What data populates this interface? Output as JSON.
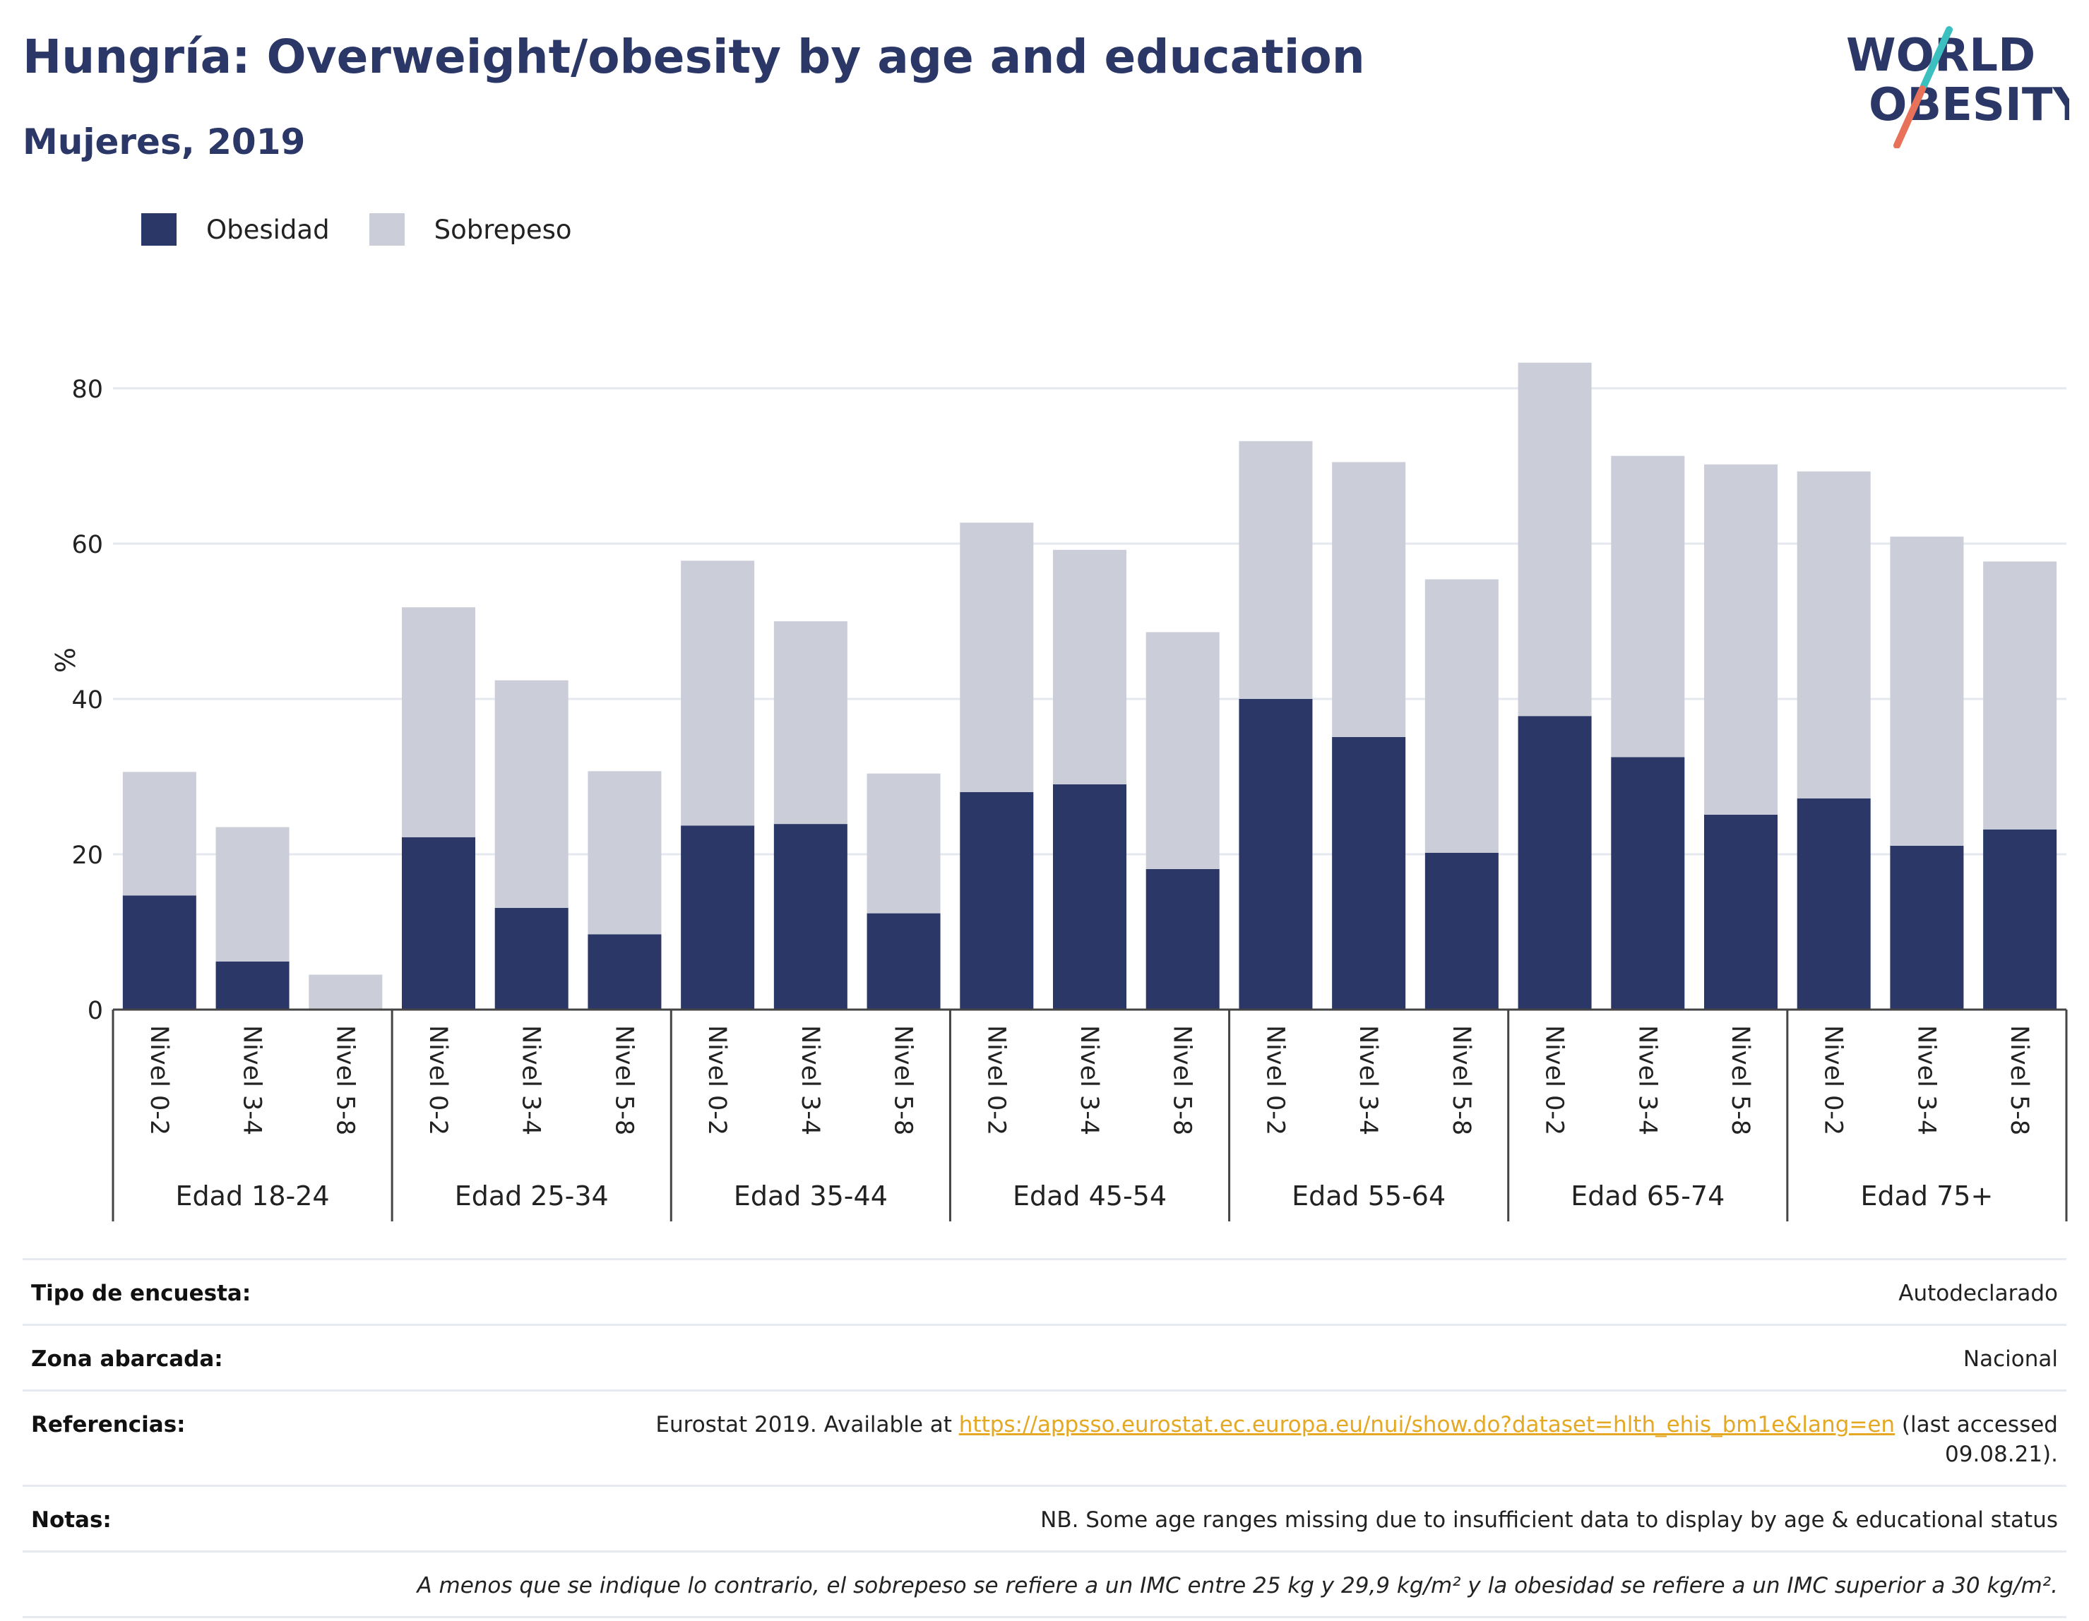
{
  "header": {
    "title": "Hungría: Overweight/obesity by age and education",
    "subtitle": "Mujeres, 2019"
  },
  "logo": {
    "line1": "WORLD",
    "line2": "OBESITY",
    "accent_teal": "#3bbfbf",
    "accent_coral": "#e8715a",
    "color": "#2b3766"
  },
  "legend": [
    {
      "label": "Obesidad",
      "color": "#2b3766"
    },
    {
      "label": "Sobrepeso",
      "color": "#cbcdd9"
    }
  ],
  "chart_data": {
    "type": "bar",
    "stacked": true,
    "ylabel": "%",
    "ylim": [
      0,
      90
    ],
    "yticks": [
      0,
      20,
      40,
      60,
      80
    ],
    "grid": true,
    "legend_position": "top-left",
    "groups": [
      "Edad 18-24",
      "Edad 25-34",
      "Edad 35-44",
      "Edad 45-54",
      "Edad 55-64",
      "Edad 65-74",
      "Edad 75+"
    ],
    "subcategories": [
      "Nivel 0-2",
      "Nivel 3-4",
      "Nivel 5-8"
    ],
    "series": [
      {
        "name": "Obesidad",
        "color": "#2b3766",
        "values": [
          14.7,
          6.2,
          0,
          22.2,
          13.1,
          9.7,
          23.7,
          23.9,
          12.4,
          28.0,
          29.0,
          18.1,
          40.0,
          35.1,
          20.2,
          37.8,
          32.5,
          25.1,
          27.2,
          21.1,
          23.2
        ]
      },
      {
        "name": "Sobrepeso",
        "color": "#cbcdd9",
        "values": [
          15.9,
          17.3,
          4.5,
          29.6,
          29.3,
          21.0,
          34.1,
          26.1,
          18.0,
          34.7,
          30.2,
          30.5,
          33.2,
          35.4,
          35.2,
          45.5,
          38.8,
          45.1,
          42.1,
          39.8,
          34.5
        ]
      }
    ]
  },
  "info": {
    "survey_label": "Tipo de encuesta:",
    "survey_value": "Autodeclarado",
    "area_label": "Zona abarcada:",
    "area_value": "Nacional",
    "refs_label": "Referencias:",
    "refs_prefix": "Eurostat 2019. Available at ",
    "refs_link": "https://appsso.eurostat.ec.europa.eu/nui/show.do?dataset=hlth_ehis_bm1e&lang=en",
    "refs_suffix": " (last accessed 09.08.21).",
    "notes_label": "Notas:",
    "notes_value": "NB. Some age ranges missing due to insufficient data to display by age & educational status",
    "footnote": "A menos que se indique lo contrario, el sobrepeso se refiere a un IMC entre 25 kg y 29,9 kg/m² y la obesidad se refiere a un IMC superior a 30 kg/m²."
  }
}
